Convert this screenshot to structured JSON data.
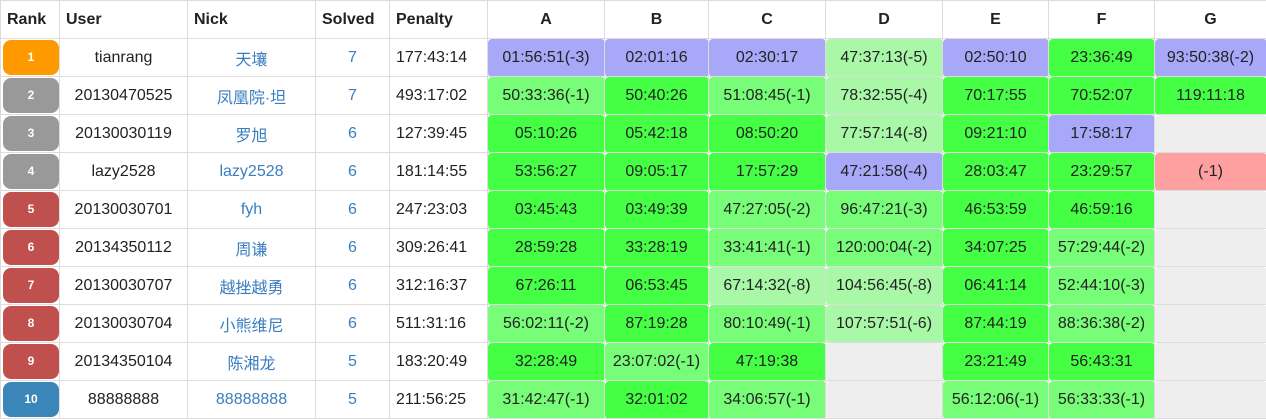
{
  "colors": {
    "first_solve": "#a8a8f8",
    "solved_clean": "#44ff44",
    "solved_penalty": "#77fd77",
    "solved_heavy_penalty": "#a8f8a8",
    "failed": "#ffa0a0",
    "empty": "#eeeeee",
    "rank_gold": "#ff9900",
    "rank_silver": "#999999",
    "rank_bronze": "#c0504d",
    "rank_blue": "#3b86b8"
  },
  "header": {
    "rank": "Rank",
    "user": "User",
    "nick": "Nick",
    "solved": "Solved",
    "penalty": "Penalty",
    "problems": [
      "A",
      "B",
      "C",
      "D",
      "E",
      "F",
      "G"
    ]
  },
  "rows": [
    {
      "rank": "1",
      "badge": "gold",
      "user": "tianrang",
      "nick": "天壤",
      "solved": "7",
      "penalty": "177:43:14",
      "cells": [
        {
          "text": "01:56:51(-3)",
          "state": "first"
        },
        {
          "text": "02:01:16",
          "state": "first"
        },
        {
          "text": "02:30:17",
          "state": "first"
        },
        {
          "text": "47:37:13(-5)",
          "state": "heavy"
        },
        {
          "text": "02:50:10",
          "state": "first"
        },
        {
          "text": "23:36:49",
          "state": "clean"
        },
        {
          "text": "93:50:38(-2)",
          "state": "first"
        }
      ]
    },
    {
      "rank": "2",
      "badge": "silver",
      "user": "20130470525",
      "nick": "凤凰院·坦",
      "solved": "7",
      "penalty": "493:17:02",
      "cells": [
        {
          "text": "50:33:36(-1)",
          "state": "penalty"
        },
        {
          "text": "50:40:26",
          "state": "clean"
        },
        {
          "text": "51:08:45(-1)",
          "state": "penalty"
        },
        {
          "text": "78:32:55(-4)",
          "state": "heavy"
        },
        {
          "text": "70:17:55",
          "state": "clean"
        },
        {
          "text": "70:52:07",
          "state": "clean"
        },
        {
          "text": "119:11:18",
          "state": "clean"
        }
      ]
    },
    {
      "rank": "3",
      "badge": "silver",
      "user": "20130030119",
      "nick": "罗旭",
      "solved": "6",
      "penalty": "127:39:45",
      "cells": [
        {
          "text": "05:10:26",
          "state": "clean"
        },
        {
          "text": "05:42:18",
          "state": "clean"
        },
        {
          "text": "08:50:20",
          "state": "clean"
        },
        {
          "text": "77:57:14(-8)",
          "state": "heavy"
        },
        {
          "text": "09:21:10",
          "state": "clean"
        },
        {
          "text": "17:58:17",
          "state": "first"
        },
        {
          "text": "",
          "state": "empty"
        }
      ]
    },
    {
      "rank": "4",
      "badge": "silver",
      "user": "lazy2528",
      "nick": "lazy2528",
      "solved": "6",
      "penalty": "181:14:55",
      "cells": [
        {
          "text": "53:56:27",
          "state": "clean"
        },
        {
          "text": "09:05:17",
          "state": "clean"
        },
        {
          "text": "17:57:29",
          "state": "clean"
        },
        {
          "text": "47:21:58(-4)",
          "state": "first"
        },
        {
          "text": "28:03:47",
          "state": "clean"
        },
        {
          "text": "23:29:57",
          "state": "clean"
        },
        {
          "text": "(-1)",
          "state": "failed"
        }
      ]
    },
    {
      "rank": "5",
      "badge": "bronze",
      "user": "20130030701",
      "nick": "fyh",
      "solved": "6",
      "penalty": "247:23:03",
      "cells": [
        {
          "text": "03:45:43",
          "state": "clean"
        },
        {
          "text": "03:49:39",
          "state": "clean"
        },
        {
          "text": "47:27:05(-2)",
          "state": "penalty"
        },
        {
          "text": "96:47:21(-3)",
          "state": "penalty"
        },
        {
          "text": "46:53:59",
          "state": "clean"
        },
        {
          "text": "46:59:16",
          "state": "clean"
        },
        {
          "text": "",
          "state": "empty"
        }
      ]
    },
    {
      "rank": "6",
      "badge": "bronze",
      "user": "20134350112",
      "nick": "周谦",
      "solved": "6",
      "penalty": "309:26:41",
      "cells": [
        {
          "text": "28:59:28",
          "state": "clean"
        },
        {
          "text": "33:28:19",
          "state": "clean"
        },
        {
          "text": "33:41:41(-1)",
          "state": "penalty"
        },
        {
          "text": "120:00:04(-2)",
          "state": "penalty"
        },
        {
          "text": "34:07:25",
          "state": "clean"
        },
        {
          "text": "57:29:44(-2)",
          "state": "penalty"
        },
        {
          "text": "",
          "state": "empty"
        }
      ]
    },
    {
      "rank": "7",
      "badge": "bronze",
      "user": "20130030707",
      "nick": "越挫越勇",
      "solved": "6",
      "penalty": "312:16:37",
      "cells": [
        {
          "text": "67:26:11",
          "state": "clean"
        },
        {
          "text": "06:53:45",
          "state": "clean"
        },
        {
          "text": "67:14:32(-8)",
          "state": "heavy"
        },
        {
          "text": "104:56:45(-8)",
          "state": "heavy"
        },
        {
          "text": "06:41:14",
          "state": "clean"
        },
        {
          "text": "52:44:10(-3)",
          "state": "penalty"
        },
        {
          "text": "",
          "state": "empty"
        }
      ]
    },
    {
      "rank": "8",
      "badge": "bronze",
      "user": "20130030704",
      "nick": "小熊维尼",
      "solved": "6",
      "penalty": "511:31:16",
      "cells": [
        {
          "text": "56:02:11(-2)",
          "state": "penalty"
        },
        {
          "text": "87:19:28",
          "state": "clean"
        },
        {
          "text": "80:10:49(-1)",
          "state": "penalty"
        },
        {
          "text": "107:57:51(-6)",
          "state": "heavy"
        },
        {
          "text": "87:44:19",
          "state": "clean"
        },
        {
          "text": "88:36:38(-2)",
          "state": "penalty"
        },
        {
          "text": "",
          "state": "empty"
        }
      ]
    },
    {
      "rank": "9",
      "badge": "bronze",
      "user": "20134350104",
      "nick": "陈湘龙",
      "solved": "5",
      "penalty": "183:20:49",
      "cells": [
        {
          "text": "32:28:49",
          "state": "clean"
        },
        {
          "text": "23:07:02(-1)",
          "state": "penalty"
        },
        {
          "text": "47:19:38",
          "state": "clean"
        },
        {
          "text": "",
          "state": "empty"
        },
        {
          "text": "23:21:49",
          "state": "clean"
        },
        {
          "text": "56:43:31",
          "state": "clean"
        },
        {
          "text": "",
          "state": "empty"
        }
      ]
    },
    {
      "rank": "10",
      "badge": "blue",
      "user": "88888888",
      "nick": "88888888",
      "solved": "5",
      "penalty": "211:56:25",
      "cells": [
        {
          "text": "31:42:47(-1)",
          "state": "penalty"
        },
        {
          "text": "32:01:02",
          "state": "clean"
        },
        {
          "text": "34:06:57(-1)",
          "state": "penalty"
        },
        {
          "text": "",
          "state": "empty"
        },
        {
          "text": "56:12:06(-1)",
          "state": "penalty"
        },
        {
          "text": "56:33:33(-1)",
          "state": "penalty"
        },
        {
          "text": "",
          "state": "empty"
        }
      ]
    }
  ]
}
